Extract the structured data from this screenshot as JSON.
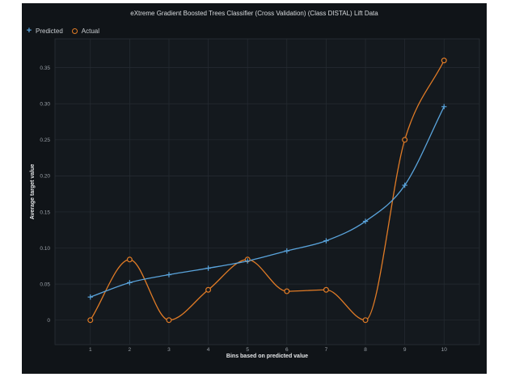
{
  "chart_data": {
    "type": "line",
    "title": "eXtreme Gradient Boosted Trees Classifier (Cross Validation) (Class DISTAL) Lift Data",
    "xlabel": "Bins based on predicted value",
    "ylabel": "Average target value",
    "categories": [
      "1",
      "2",
      "3",
      "4",
      "5",
      "6",
      "7",
      "8",
      "9",
      "10"
    ],
    "x": [
      1,
      2,
      3,
      4,
      5,
      6,
      7,
      8,
      9,
      10
    ],
    "xlim": [
      0.1,
      10.9
    ],
    "ylim": [
      -0.034,
      0.39
    ],
    "yticks": [
      0,
      0.05,
      0.1,
      0.15,
      0.2,
      0.25,
      0.3,
      0.35
    ],
    "ytick_labels": [
      "0",
      "0.05",
      "0.10",
      "0.15",
      "0.20",
      "0.25",
      "0.30",
      "0.35"
    ],
    "grid": true,
    "legend": "top-left",
    "series": [
      {
        "name": "Predicted",
        "marker": "plus",
        "color": "#5aa4dc",
        "values": [
          0.032,
          0.052,
          0.063,
          0.072,
          0.082,
          0.096,
          0.11,
          0.137,
          0.187,
          0.296
        ]
      },
      {
        "name": "Actual",
        "marker": "circle",
        "color": "#e07b26",
        "values": [
          0.0,
          0.084,
          0.0,
          0.042,
          0.084,
          0.04,
          0.042,
          0.0,
          0.25,
          0.36
        ]
      }
    ]
  }
}
